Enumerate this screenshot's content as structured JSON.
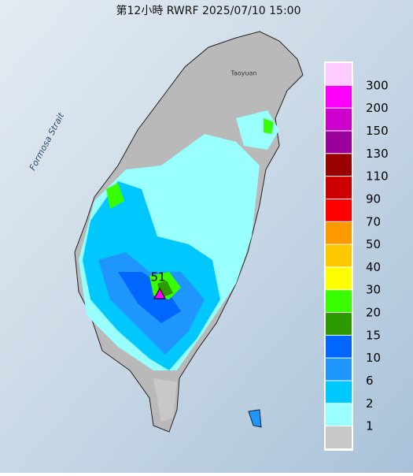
{
  "header": {
    "title": "第12小時 RWRF 2025/07/10 15:00"
  },
  "map": {
    "labels": {
      "strait": "Formosa Strait",
      "city": "Taoyuan"
    },
    "max_marker": "51"
  },
  "legend": {
    "labels": [
      "300",
      "200",
      "150",
      "130",
      "110",
      "90",
      "70",
      "50",
      "40",
      "30",
      "20",
      "15",
      "10",
      "6",
      "2",
      "1"
    ],
    "colors": [
      "#fdcbfd",
      "#fd00fd",
      "#ce00ce",
      "#9a009a",
      "#9a0000",
      "#cc0000",
      "#fe0000",
      "#fe9a00",
      "#fec800",
      "#fefe00",
      "#38fe00",
      "#2d9a00",
      "#0066fe",
      "#1e96fe",
      "#00c8fe",
      "#98fefe",
      "#c8c8c8"
    ]
  }
}
